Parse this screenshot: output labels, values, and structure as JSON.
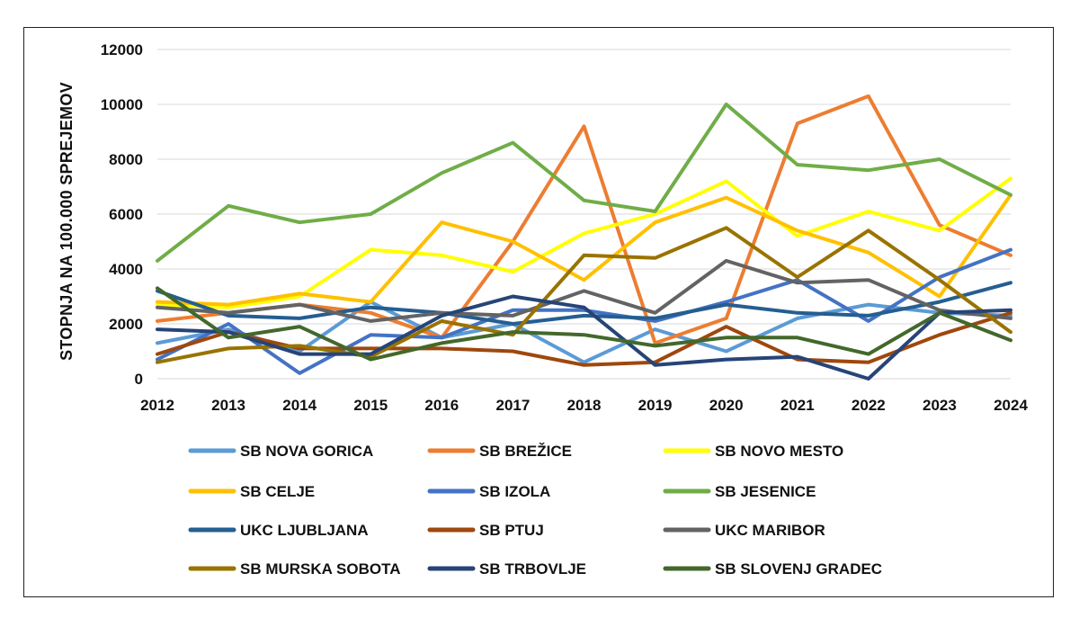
{
  "chart_data": {
    "type": "line",
    "title": "",
    "xlabel": "",
    "ylabel": "STOPNJA NA 100.000 SPREJEMOV",
    "ylim": [
      0,
      12000
    ],
    "yticks": [
      "0",
      "2000",
      "4000",
      "6000",
      "8000",
      "10000",
      "12000"
    ],
    "x": [
      "2012",
      "2013",
      "2014",
      "2015",
      "2016",
      "2017",
      "2018",
      "2019",
      "2020",
      "2021",
      "2022",
      "2023",
      "2024"
    ],
    "grid": "horizontal",
    "legend_position": "bottom",
    "series": [
      {
        "name": "SB NOVA GORICA",
        "color": "#5B9BD5",
        "values": [
          1300,
          1800,
          1000,
          2800,
          1500,
          2000,
          600,
          1800,
          1000,
          2200,
          2700,
          2400,
          2300
        ]
      },
      {
        "name": "SB BREŽICE",
        "color": "#ED7D31",
        "values": [
          2100,
          2400,
          2700,
          2400,
          1500,
          5000,
          9200,
          1300,
          2200,
          9300,
          10300,
          5600,
          4500
        ]
      },
      {
        "name": "SB NOVO MESTO",
        "color": "#FFFF00",
        "values": [
          2700,
          2600,
          3000,
          4700,
          4500,
          3900,
          5300,
          6000,
          7200,
          5200,
          6100,
          5400,
          7300
        ]
      },
      {
        "name": "SB CELJE",
        "color": "#FFC000",
        "values": [
          2800,
          2700,
          3100,
          2800,
          5700,
          5000,
          3600,
          5700,
          6600,
          5400,
          4600,
          3000,
          6700
        ]
      },
      {
        "name": "SB IZOLA",
        "color": "#4472C4",
        "values": [
          700,
          2000,
          200,
          1600,
          1500,
          2500,
          2500,
          2100,
          2800,
          3600,
          2100,
          3700,
          4700
        ]
      },
      {
        "name": "SB JESENICE",
        "color": "#70AD47",
        "values": [
          4300,
          6300,
          5700,
          6000,
          7500,
          8600,
          6500,
          6100,
          10000,
          7800,
          7600,
          8000,
          6700
        ]
      },
      {
        "name": "UKC LJUBLJANA",
        "color": "#255E91",
        "values": [
          3200,
          2300,
          2200,
          2600,
          2400,
          2000,
          2300,
          2200,
          2700,
          2400,
          2300,
          2800,
          3500
        ]
      },
      {
        "name": "SB PTUJ",
        "color": "#9E480E",
        "values": [
          900,
          1700,
          1100,
          1100,
          1100,
          1000,
          500,
          600,
          1900,
          700,
          600,
          1600,
          2400
        ]
      },
      {
        "name": "UKC MARIBOR",
        "color": "#636363",
        "values": [
          2600,
          2400,
          2700,
          2100,
          2400,
          2300,
          3200,
          2400,
          4300,
          3500,
          3600,
          2500,
          2200
        ]
      },
      {
        "name": "SB MURSKA SOBOTA",
        "color": "#997300",
        "values": [
          600,
          1100,
          1200,
          800,
          2100,
          1600,
          4500,
          4400,
          5500,
          3700,
          5400,
          3600,
          1700
        ]
      },
      {
        "name": "SB TRBOVLJE",
        "color": "#264478",
        "values": [
          1800,
          1700,
          900,
          900,
          2300,
          3000,
          2600,
          500,
          700,
          800,
          0,
          2400,
          2500
        ]
      },
      {
        "name": "SB SLOVENJ GRADEC",
        "color": "#43682B",
        "values": [
          3300,
          1500,
          1900,
          700,
          1300,
          1700,
          1600,
          1200,
          1500,
          1500,
          900,
          2400,
          1400
        ]
      }
    ]
  }
}
